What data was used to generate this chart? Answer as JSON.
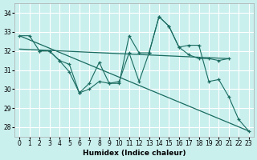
{
  "xlabel": "Humidex (Indice chaleur)",
  "background_color": "#caf0ee",
  "grid_color": "#ffffff",
  "line_color": "#1a6b60",
  "xlim": [
    -0.5,
    23.5
  ],
  "ylim": [
    27.5,
    34.5
  ],
  "yticks": [
    28,
    29,
    30,
    31,
    32,
    33,
    34
  ],
  "x_ticks": [
    0,
    1,
    2,
    3,
    4,
    5,
    6,
    7,
    8,
    9,
    10,
    11,
    12,
    13,
    14,
    15,
    16,
    17,
    18,
    19,
    20,
    21,
    22,
    23
  ],
  "line_steep": {
    "x": [
      0,
      23
    ],
    "y": [
      32.8,
      27.8
    ]
  },
  "line_flat": {
    "x": [
      0,
      21
    ],
    "y": [
      32.1,
      31.6
    ]
  },
  "line_jagged1": {
    "x": [
      0,
      1,
      2,
      3,
      4,
      5,
      6,
      7,
      8,
      9,
      10,
      11,
      12,
      13,
      14,
      15,
      16,
      17,
      18,
      19,
      20,
      21,
      22,
      23
    ],
    "y": [
      32.8,
      32.8,
      32.0,
      32.0,
      31.5,
      30.9,
      29.8,
      30.0,
      30.4,
      30.3,
      30.3,
      32.8,
      31.9,
      31.9,
      33.8,
      33.3,
      32.2,
      32.3,
      32.3,
      30.4,
      30.5,
      29.6,
      28.4,
      27.8
    ]
  },
  "line_jagged2": {
    "x": [
      2,
      3,
      4,
      5,
      6,
      7,
      8,
      9,
      10,
      11,
      12,
      13,
      14,
      15,
      16,
      17,
      18,
      19,
      20,
      21
    ],
    "y": [
      32.0,
      32.0,
      31.5,
      31.3,
      29.8,
      30.3,
      31.4,
      30.3,
      30.4,
      31.9,
      30.4,
      31.9,
      33.8,
      33.3,
      32.2,
      31.8,
      31.6,
      31.6,
      31.5,
      31.6
    ]
  }
}
